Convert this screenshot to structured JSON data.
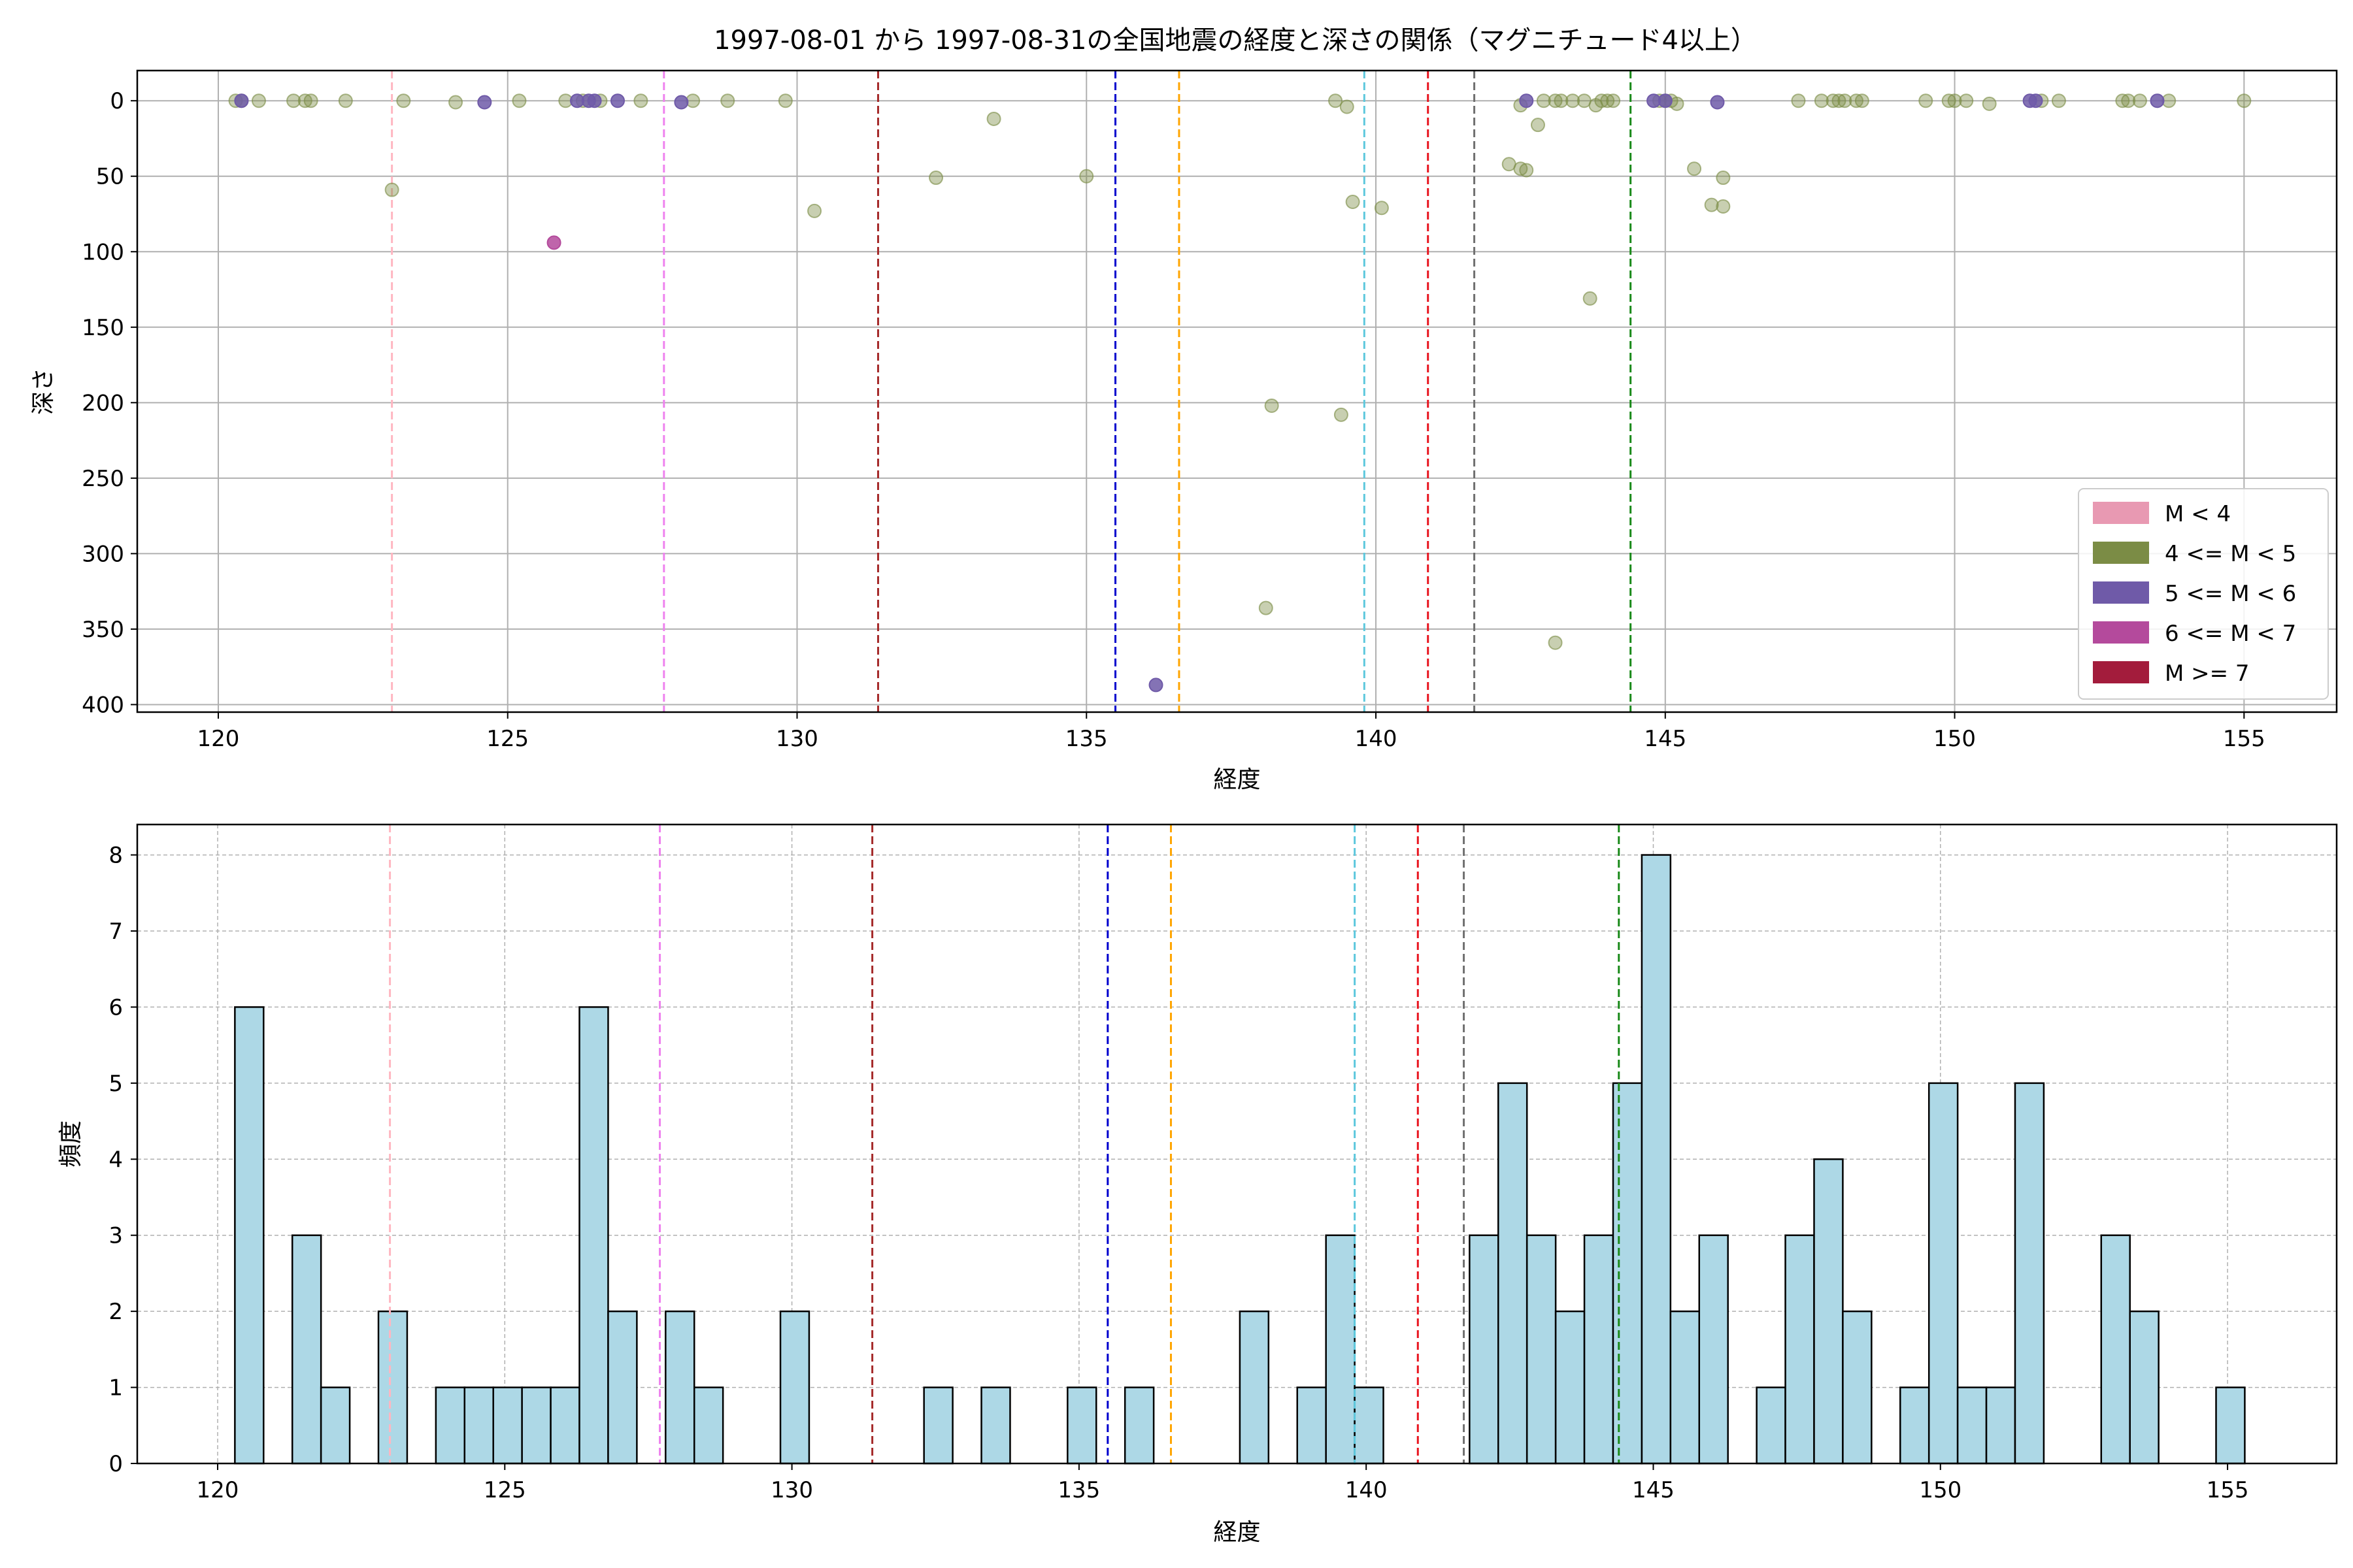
{
  "figure_title": "1997-08-01 から 1997-08-31の全国地震の経度と深さの関係（マグニチュード4以上）",
  "colors": {
    "m_lt4": "#e899b2",
    "m4_5": "#7b8c45",
    "m5_6": "#6f5aa8",
    "m6_7": "#b44a9c",
    "m_ge7": "#a31c3c",
    "hist_fill": "#add8e6",
    "grid": "#b0b0b0"
  },
  "chart_data": [
    {
      "type": "scatter",
      "title": "1997-08-01 から 1997-08-31の全国地震の経度と深さの関係（マグニチュード4以上）",
      "xlabel": "経度",
      "ylabel": "深さ",
      "xlim": [
        118.6,
        156.6
      ],
      "ylim": [
        405,
        -20
      ],
      "y_inverted": true,
      "grid": true,
      "xticks": [
        120,
        125,
        130,
        135,
        140,
        145,
        150,
        155
      ],
      "yticks": [
        0,
        50,
        100,
        150,
        200,
        250,
        300,
        350,
        400
      ],
      "legend_position": "bottom-right",
      "legend": [
        {
          "label": "M < 4",
          "color": "#e899b2"
        },
        {
          "label": "4 <= M < 5",
          "color": "#7b8c45"
        },
        {
          "label": "5 <= M < 6",
          "color": "#6f5aa8"
        },
        {
          "label": "6 <= M < 7",
          "color": "#b44a9c"
        },
        {
          "label": "M >= 7",
          "color": "#a31c3c"
        }
      ],
      "vlines": [
        {
          "x": 123.0,
          "color": "#ffb6c1"
        },
        {
          "x": 127.7,
          "color": "#ee82ee"
        },
        {
          "x": 131.4,
          "color": "#a52a2a"
        },
        {
          "x": 135.5,
          "color": "#0000cd"
        },
        {
          "x": 136.6,
          "color": "#ffa500"
        },
        {
          "x": 139.8,
          "color": "#5ec8dd"
        },
        {
          "x": 140.9,
          "color": "#e8141e"
        },
        {
          "x": 141.7,
          "color": "#707070"
        },
        {
          "x": 144.4,
          "color": "#1a8a1a"
        }
      ],
      "series": [
        {
          "magnitude": "4 <= M < 5",
          "points": [
            [
              120.3,
              0
            ],
            [
              120.4,
              0
            ],
            [
              120.7,
              0
            ],
            [
              121.3,
              0
            ],
            [
              121.5,
              0
            ],
            [
              121.6,
              0
            ],
            [
              122.2,
              0
            ],
            [
              123.0,
              59
            ],
            [
              123.2,
              0
            ],
            [
              124.1,
              1
            ],
            [
              125.2,
              0
            ],
            [
              126.0,
              0
            ],
            [
              126.3,
              0
            ],
            [
              126.6,
              0
            ],
            [
              127.3,
              0
            ],
            [
              128.2,
              0
            ],
            [
              128.8,
              0
            ],
            [
              129.8,
              0
            ],
            [
              130.3,
              73
            ],
            [
              132.4,
              51
            ],
            [
              133.4,
              12
            ],
            [
              135.0,
              50
            ],
            [
              139.3,
              0
            ],
            [
              139.5,
              4
            ],
            [
              139.6,
              67
            ],
            [
              140.1,
              71
            ],
            [
              138.2,
              202
            ],
            [
              139.4,
              208
            ],
            [
              138.1,
              336
            ],
            [
              142.3,
              42
            ],
            [
              142.5,
              45
            ],
            [
              142.6,
              46
            ],
            [
              142.5,
              3
            ],
            [
              142.8,
              16
            ],
            [
              142.9,
              0
            ],
            [
              143.1,
              0
            ],
            [
              143.2,
              0
            ],
            [
              143.4,
              0
            ],
            [
              143.6,
              0
            ],
            [
              143.8,
              3
            ],
            [
              143.9,
              0
            ],
            [
              144.0,
              0
            ],
            [
              144.1,
              0
            ],
            [
              143.7,
              131
            ],
            [
              143.1,
              359
            ],
            [
              144.9,
              0
            ],
            [
              145.0,
              0
            ],
            [
              145.1,
              0
            ],
            [
              145.2,
              2
            ],
            [
              145.5,
              45
            ],
            [
              145.8,
              69
            ],
            [
              146.0,
              51
            ],
            [
              146.0,
              70
            ],
            [
              147.3,
              0
            ],
            [
              147.7,
              0
            ],
            [
              147.9,
              0
            ],
            [
              148.0,
              0
            ],
            [
              148.1,
              0
            ],
            [
              148.3,
              0
            ],
            [
              148.4,
              0
            ],
            [
              149.5,
              0
            ],
            [
              149.9,
              0
            ],
            [
              150.0,
              0
            ],
            [
              150.2,
              0
            ],
            [
              150.6,
              2
            ],
            [
              151.5,
              0
            ],
            [
              151.8,
              0
            ],
            [
              152.9,
              0
            ],
            [
              153.0,
              0
            ],
            [
              153.2,
              0
            ],
            [
              153.7,
              0
            ],
            [
              155.0,
              0
            ]
          ]
        },
        {
          "magnitude": "5 <= M < 6",
          "points": [
            [
              120.4,
              0
            ],
            [
              124.6,
              1
            ],
            [
              126.2,
              0
            ],
            [
              126.4,
              0
            ],
            [
              126.5,
              0
            ],
            [
              126.9,
              0
            ],
            [
              128.0,
              1
            ],
            [
              142.6,
              0
            ],
            [
              144.8,
              0
            ],
            [
              145.0,
              0
            ],
            [
              145.9,
              1
            ],
            [
              151.3,
              0
            ],
            [
              151.4,
              0
            ],
            [
              153.5,
              0
            ],
            [
              136.2,
              387
            ]
          ]
        },
        {
          "magnitude": "6 <= M < 7",
          "points": [
            [
              125.8,
              94
            ]
          ]
        }
      ]
    },
    {
      "type": "bar",
      "xlabel": "経度",
      "ylabel": "頻度",
      "xlim": [
        118.6,
        156.9
      ],
      "ylim": [
        0,
        8.4
      ],
      "grid": true,
      "xticks": [
        120,
        125,
        130,
        135,
        140,
        145,
        150,
        155
      ],
      "yticks": [
        0,
        1,
        2,
        3,
        4,
        5,
        6,
        7,
        8
      ],
      "bin_width": 0.5,
      "bins": [
        {
          "x": 120.3,
          "count": 6
        },
        {
          "x": 121.3,
          "count": 3
        },
        {
          "x": 121.8,
          "count": 1
        },
        {
          "x": 122.8,
          "count": 2
        },
        {
          "x": 123.8,
          "count": 1
        },
        {
          "x": 124.3,
          "count": 1
        },
        {
          "x": 124.8,
          "count": 1
        },
        {
          "x": 125.3,
          "count": 1
        },
        {
          "x": 125.8,
          "count": 1
        },
        {
          "x": 126.3,
          "count": 6
        },
        {
          "x": 126.8,
          "count": 2
        },
        {
          "x": 127.8,
          "count": 2
        },
        {
          "x": 128.3,
          "count": 1
        },
        {
          "x": 129.8,
          "count": 2
        },
        {
          "x": 132.3,
          "count": 1
        },
        {
          "x": 133.3,
          "count": 1
        },
        {
          "x": 134.8,
          "count": 1
        },
        {
          "x": 135.8,
          "count": 1
        },
        {
          "x": 137.8,
          "count": 2
        },
        {
          "x": 138.8,
          "count": 1
        },
        {
          "x": 139.3,
          "count": 3
        },
        {
          "x": 139.8,
          "count": 1
        },
        {
          "x": 141.8,
          "count": 3
        },
        {
          "x": 142.3,
          "count": 5
        },
        {
          "x": 142.8,
          "count": 3
        },
        {
          "x": 143.3,
          "count": 2
        },
        {
          "x": 143.8,
          "count": 3
        },
        {
          "x": 144.3,
          "count": 5
        },
        {
          "x": 144.8,
          "count": 8
        },
        {
          "x": 145.3,
          "count": 2
        },
        {
          "x": 145.8,
          "count": 3
        },
        {
          "x": 146.8,
          "count": 1
        },
        {
          "x": 147.3,
          "count": 3
        },
        {
          "x": 147.8,
          "count": 4
        },
        {
          "x": 148.3,
          "count": 2
        },
        {
          "x": 149.3,
          "count": 1
        },
        {
          "x": 149.8,
          "count": 5
        },
        {
          "x": 150.3,
          "count": 1
        },
        {
          "x": 150.8,
          "count": 1
        },
        {
          "x": 151.3,
          "count": 5
        },
        {
          "x": 152.8,
          "count": 3
        },
        {
          "x": 153.3,
          "count": 2
        },
        {
          "x": 154.8,
          "count": 1
        }
      ],
      "vlines": [
        {
          "x": 123.0,
          "color": "#ffb6c1"
        },
        {
          "x": 127.7,
          "color": "#ee82ee"
        },
        {
          "x": 131.4,
          "color": "#a52a2a"
        },
        {
          "x": 135.5,
          "color": "#0000cd"
        },
        {
          "x": 136.6,
          "color": "#ffa500"
        },
        {
          "x": 139.8,
          "color": "#5ec8dd"
        },
        {
          "x": 140.9,
          "color": "#e8141e"
        },
        {
          "x": 141.7,
          "color": "#707070"
        },
        {
          "x": 144.4,
          "color": "#1a8a1a"
        }
      ]
    }
  ]
}
